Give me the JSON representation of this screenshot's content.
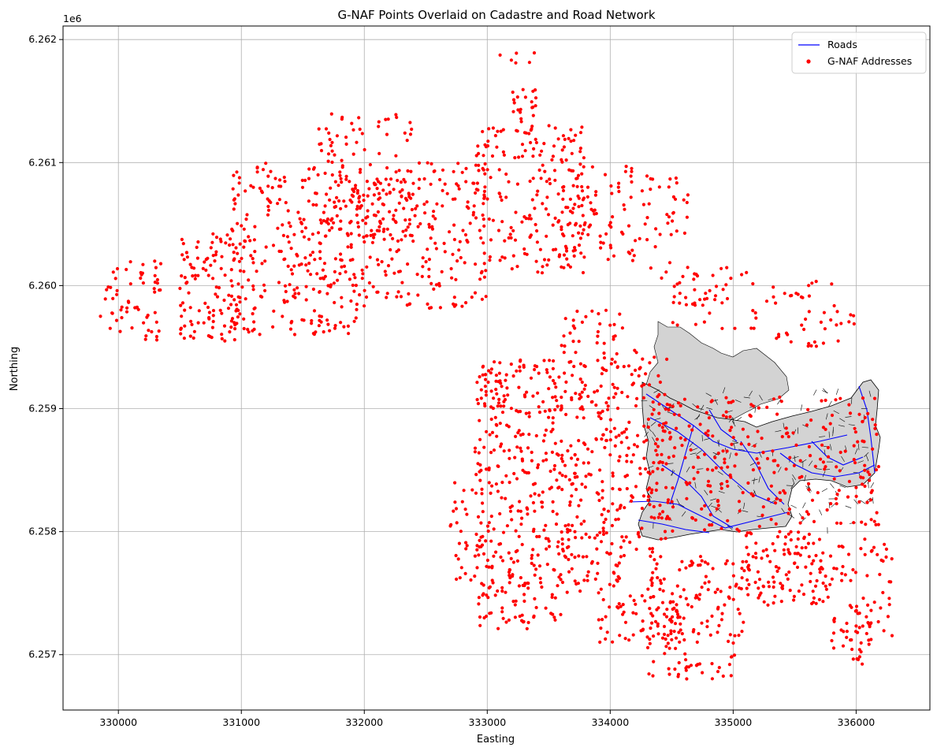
{
  "chart_data": {
    "type": "scatter",
    "title": "G-NAF Points Overlaid on Cadastre and Road Network",
    "xlabel": "Easting",
    "ylabel": "Northing",
    "y_offset_label": "1e6",
    "xlim": [
      329550,
      336600
    ],
    "ylim": [
      6256550,
      6262110
    ],
    "x_ticks": [
      330000,
      331000,
      332000,
      333000,
      334000,
      335000,
      336000
    ],
    "y_ticks": [
      6257000,
      6258000,
      6259000,
      6260000,
      6261000,
      6262000
    ],
    "y_tick_labels": [
      "6.257",
      "6.258",
      "6.259",
      "6.260",
      "6.261",
      "6.262"
    ],
    "grid": true,
    "legend_position": "top-right",
    "legend": [
      {
        "label": "Roads",
        "type": "line",
        "color": "#0000ff"
      },
      {
        "label": "G-NAF Addresses",
        "type": "point",
        "color": "#ff0000"
      }
    ],
    "colors": {
      "points": "#ff0000",
      "roads": "#0000ff",
      "parcels_fill": "#d3d3d3",
      "parcels_edge": "#000000",
      "grid": "#b0b0b0"
    },
    "point_clusters": [
      {
        "x": [
          329850,
          330350
        ],
        "y": [
          6259550,
          6260200
        ],
        "n": 60
      },
      {
        "x": [
          330500,
          331000
        ],
        "y": [
          6259550,
          6260450
        ],
        "n": 110
      },
      {
        "x": [
          330900,
          332000
        ],
        "y": [
          6259600,
          6261000
        ],
        "n": 300
      },
      {
        "x": [
          331600,
          332400
        ],
        "y": [
          6260400,
          6261400
        ],
        "n": 110
      },
      {
        "x": [
          332000,
          333000
        ],
        "y": [
          6259800,
          6261000
        ],
        "n": 210
      },
      {
        "x": [
          332900,
          333800
        ],
        "y": [
          6260100,
          6261300
        ],
        "n": 210
      },
      {
        "x": [
          333200,
          333400
        ],
        "y": [
          6261300,
          6261600
        ],
        "n": 20
      },
      {
        "x": [
          333000,
          333400
        ],
        "y": [
          6261800,
          6261900
        ],
        "n": 6
      },
      {
        "x": [
          333600,
          334200
        ],
        "y": [
          6260200,
          6261000
        ],
        "n": 70
      },
      {
        "x": [
          334200,
          334700
        ],
        "y": [
          6259950,
          6260900
        ],
        "n": 45
      },
      {
        "x": [
          334500,
          335200
        ],
        "y": [
          6259650,
          6260150
        ],
        "n": 45
      },
      {
        "x": [
          335200,
          336000
        ],
        "y": [
          6259500,
          6260050
        ],
        "n": 45
      },
      {
        "x": [
          332900,
          333600
        ],
        "y": [
          6257200,
          6259400
        ],
        "n": 370
      },
      {
        "x": [
          333600,
          334100
        ],
        "y": [
          6257500,
          6259800
        ],
        "n": 260
      },
      {
        "x": [
          332700,
          332950
        ],
        "y": [
          6257600,
          6258500
        ],
        "n": 30
      },
      {
        "x": [
          334100,
          334500
        ],
        "y": [
          6257800,
          6259500
        ],
        "n": 100
      },
      {
        "x": [
          333900,
          334600
        ],
        "y": [
          6257100,
          6257500
        ],
        "n": 70
      },
      {
        "x": [
          334300,
          335100
        ],
        "y": [
          6256800,
          6257800
        ],
        "n": 150
      },
      {
        "x": [
          335100,
          335800
        ],
        "y": [
          6257400,
          6258000
        ],
        "n": 120
      },
      {
        "x": [
          335800,
          336300
        ],
        "y": [
          6257050,
          6257950
        ],
        "n": 70
      },
      {
        "x": [
          335900,
          336050
        ],
        "y": [
          6256900,
          6257400
        ],
        "n": 18
      },
      {
        "x": [
          334300,
          336200
        ],
        "y": [
          6258000,
          6259100
        ],
        "n": 280
      }
    ]
  }
}
